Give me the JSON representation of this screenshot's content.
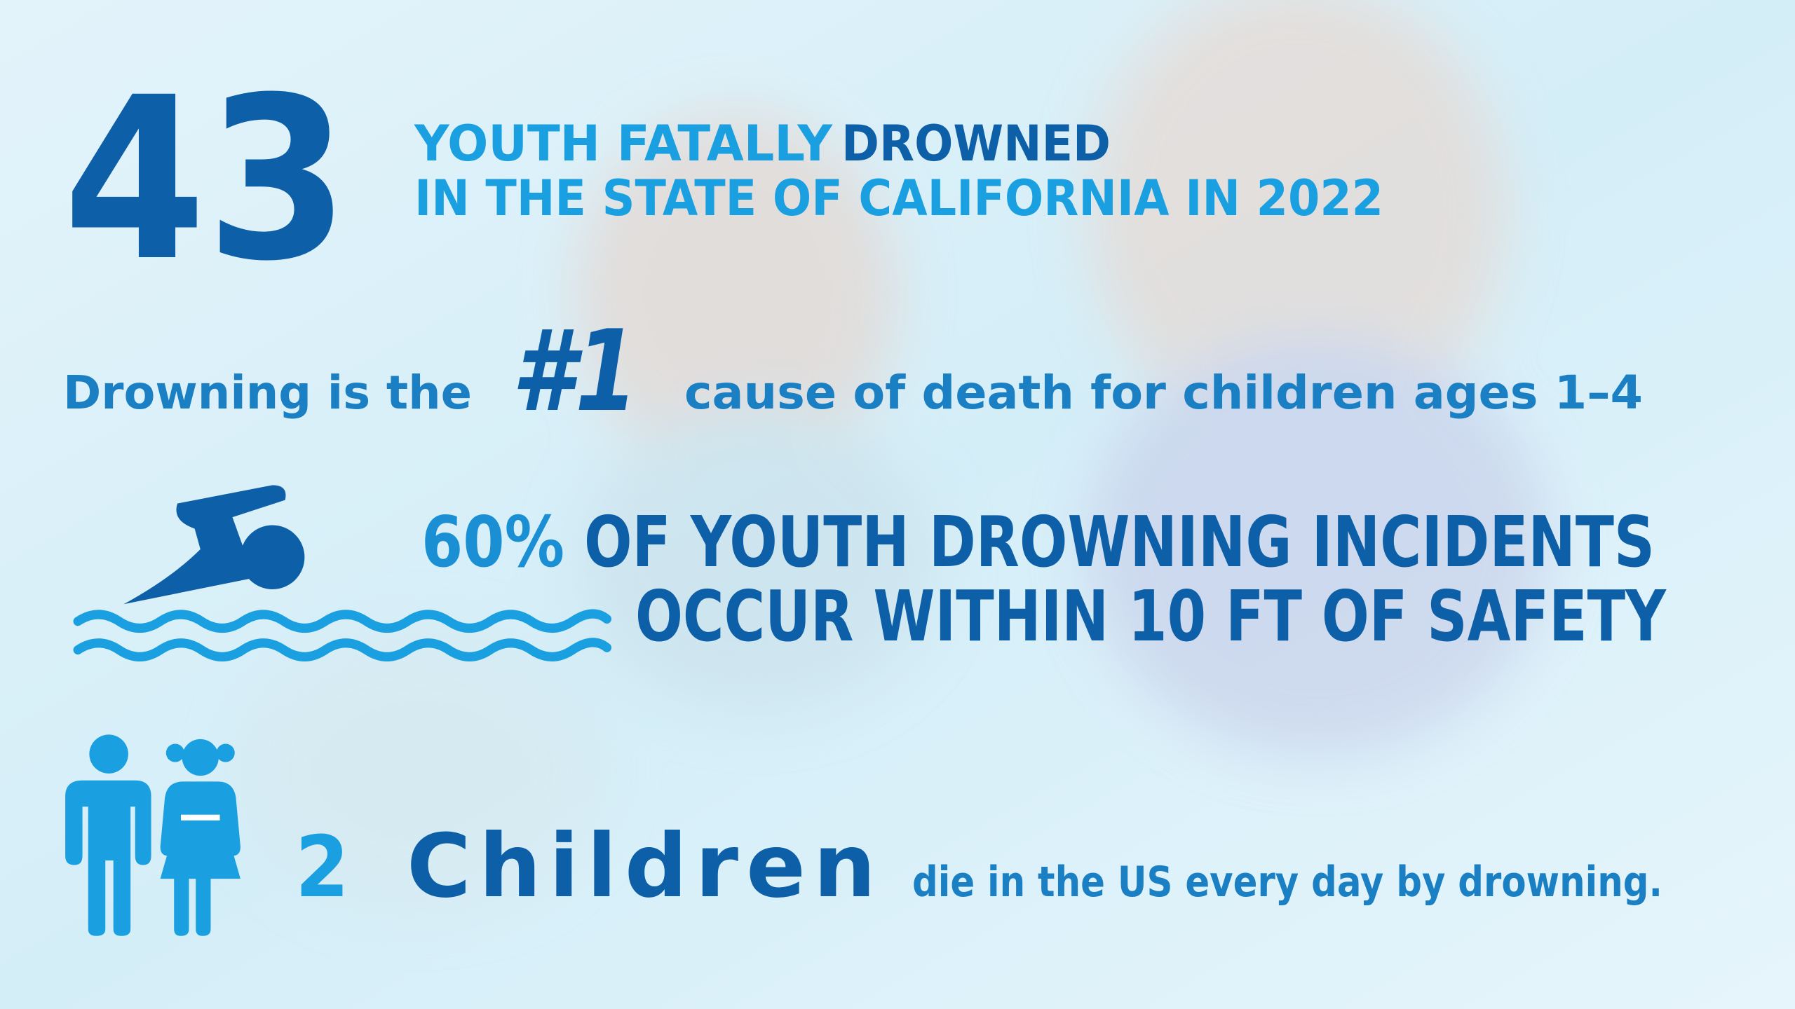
{
  "stat_total": {
    "number": "43",
    "line1_light": "YOUTH FATALLY",
    "line1_dark": "DROWNED",
    "line2": "IN THE STATE OF CALIFORNIA IN 2022"
  },
  "stat_rank": {
    "before": "Drowning is the",
    "rank": "#1",
    "after": "cause of death for children ages 1–4"
  },
  "stat_distance": {
    "percent": "60%",
    "line1": "OF YOUTH DROWNING INCIDENTS",
    "line2": "OCCUR WITHIN 10 FT OF SAFETY"
  },
  "stat_daily": {
    "number": "2",
    "unit": "Children",
    "text": "die in the US every day by drowning."
  }
}
